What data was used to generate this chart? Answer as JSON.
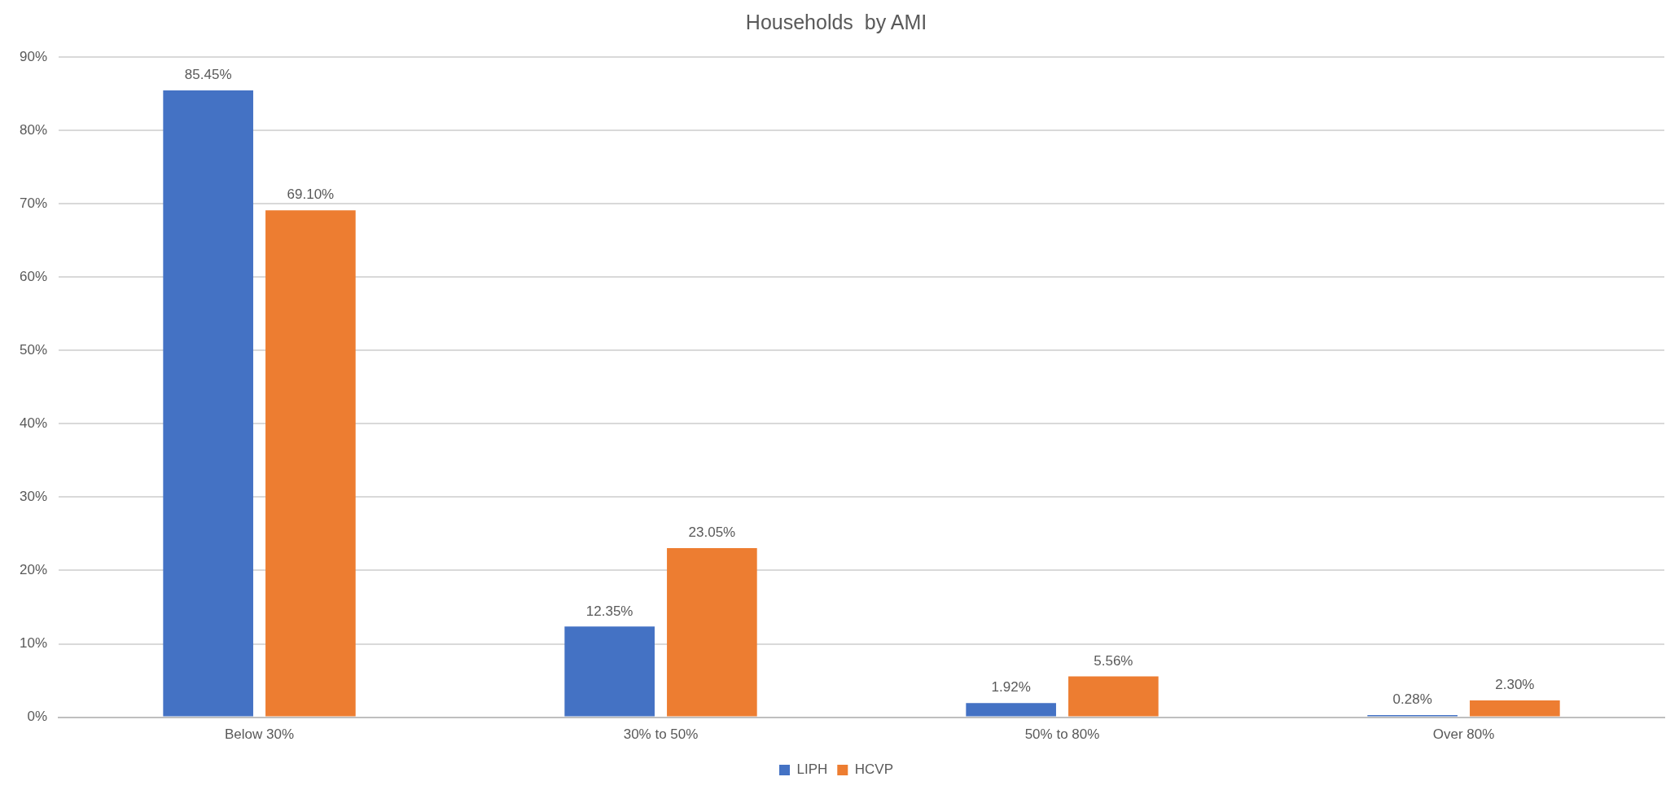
{
  "chart_data": {
    "type": "bar",
    "title": "Households  by AMI",
    "categories": [
      "Below 30%",
      "30% to 50%",
      "50% to 80%",
      "Over 80%"
    ],
    "series": [
      {
        "name": "LIPH",
        "color": "#4472c4",
        "values": [
          85.45,
          12.35,
          1.92,
          0.28
        ],
        "value_labels": [
          "85.45%",
          "12.35%",
          "1.92%",
          "0.28%"
        ]
      },
      {
        "name": "HCVP",
        "color": "#ed7d31",
        "values": [
          69.1,
          23.05,
          5.56,
          2.3
        ],
        "value_labels": [
          "69.10%",
          "23.05%",
          "5.56%",
          "2.30%"
        ]
      }
    ],
    "ylim": [
      0,
      90
    ],
    "yticks": [
      {
        "value": 0,
        "label": "0%"
      },
      {
        "value": 10,
        "label": "10%"
      },
      {
        "value": 20,
        "label": "20%"
      },
      {
        "value": 30,
        "label": "30%"
      },
      {
        "value": 40,
        "label": "40%"
      },
      {
        "value": 50,
        "label": "50%"
      },
      {
        "value": 60,
        "label": "60%"
      },
      {
        "value": 70,
        "label": "70%"
      },
      {
        "value": 80,
        "label": "80%"
      },
      {
        "value": 90,
        "label": "90%"
      }
    ],
    "grid": "y",
    "legend": "bottom"
  }
}
